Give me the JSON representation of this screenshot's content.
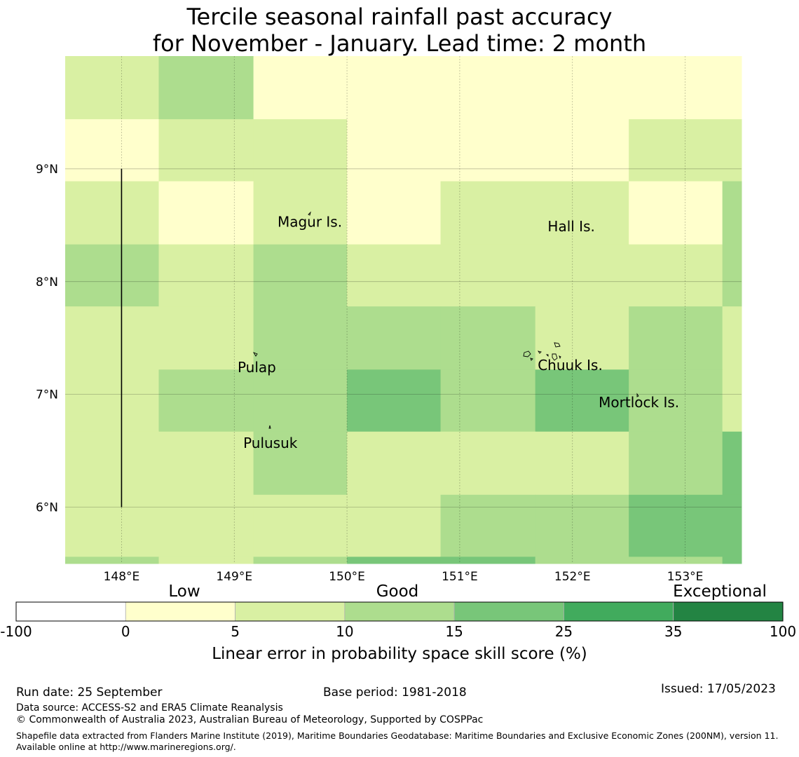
{
  "title": {
    "line1": "Tercile seasonal rainfall past accuracy",
    "line2": "for November - January. Lead time: 2 month"
  },
  "map": {
    "lon_range": [
      147.5,
      153.5
    ],
    "lat_range": [
      5.5,
      10.0
    ],
    "lon_ticks": [
      148,
      149,
      150,
      151,
      152,
      153
    ],
    "lon_tick_labels": [
      "148°E",
      "149°E",
      "150°E",
      "151°E",
      "152°E",
      "153°E"
    ],
    "lat_ticks": [
      6,
      7,
      8,
      9
    ],
    "lat_tick_labels": [
      "6°N",
      "7°N",
      "8°N",
      "9°N"
    ],
    "grid_lon_edges": [
      147.5,
      148.33,
      149.17,
      150.0,
      150.83,
      151.67,
      152.5,
      153.33,
      153.5
    ],
    "grid_lat_edges_top_to_bottom": [
      10.0,
      9.44,
      8.89,
      8.33,
      7.78,
      7.22,
      6.67,
      6.11,
      5.56,
      5.5
    ],
    "skill_category_rows_top_to_bottom": [
      [
        2,
        3,
        1,
        1,
        1,
        1,
        1,
        1
      ],
      [
        1,
        2,
        2,
        1,
        1,
        1,
        2,
        2
      ],
      [
        2,
        1,
        2,
        1,
        2,
        2,
        1,
        3
      ],
      [
        3,
        2,
        3,
        2,
        2,
        2,
        2,
        3
      ],
      [
        2,
        2,
        3,
        3,
        3,
        2,
        3,
        2
      ],
      [
        2,
        3,
        3,
        4,
        3,
        4,
        3,
        2
      ],
      [
        2,
        2,
        3,
        2,
        2,
        2,
        3,
        4
      ],
      [
        2,
        2,
        2,
        2,
        3,
        3,
        4,
        4
      ],
      [
        3,
        2,
        3,
        4,
        4,
        3,
        3,
        4
      ]
    ],
    "boundary_line": {
      "lon": 148.0,
      "lat_from": 6.0,
      "lat_to": 9.0
    },
    "place_labels": [
      {
        "name": "Magur Is.",
        "lon": 149.67,
        "lat": 8.53
      },
      {
        "name": "Hall Is.",
        "lon": 151.99,
        "lat": 8.49
      },
      {
        "name": "Pulap",
        "lon": 149.2,
        "lat": 7.24
      },
      {
        "name": "Chuuk Is.",
        "lon": 151.98,
        "lat": 7.26
      },
      {
        "name": "Mortlock Is.",
        "lon": 152.59,
        "lat": 6.93
      },
      {
        "name": "Pulusuk",
        "lon": 149.32,
        "lat": 6.57
      }
    ]
  },
  "colorbar": {
    "categories": [
      "Low",
      "Good",
      "Exceptional"
    ],
    "boundaries": [
      "-100",
      "0",
      "5",
      "10",
      "15",
      "25",
      "35",
      "100"
    ],
    "colors": [
      "#ffffff",
      "#ffffcc",
      "#d9f0a3",
      "#addd8e",
      "#78c679",
      "#41ab5d",
      "#238443"
    ],
    "label": "Linear error in probability space skill score (%)"
  },
  "footer": {
    "run_date": "Run date: 25 September",
    "base_period": "Base period: 1981-2018",
    "issued": "Issued: 17/05/2023",
    "data_source": "Data source: ACCESS-S2 and ERA5 Climate Reanalysis",
    "copyright": "© Commonwealth of Australia 2023, Australian Bureau of Meteorology, Supported by COSPPac",
    "shapefile": "Shapefile data extracted from Flanders Marine Institute (2019), Maritime Boundaries Geodatabase: Maritime Boundaries and Exclusive Economic Zones (200NM), version 11. Available online at http://www.marineregions.org/."
  }
}
